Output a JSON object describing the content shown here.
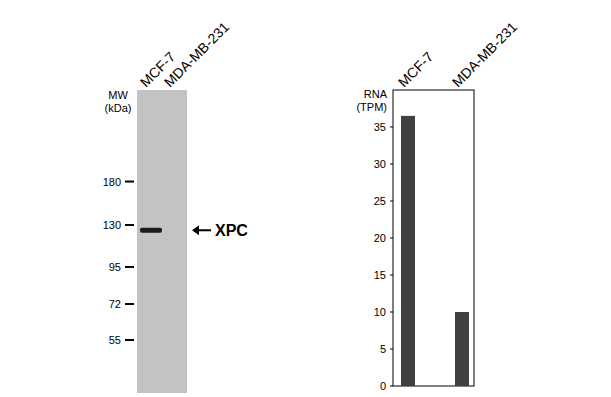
{
  "chart_data": [
    {
      "type": "western_blot",
      "ylabel": "MW\n(kDa)",
      "categories": [
        "MCF-7",
        "MDA-MB-231"
      ],
      "values": [
        125,
        null
      ],
      "color": "#1a1a1a",
      "log": "y",
      "ylim": [
        37,
        357
      ],
      "yticks": [
        180,
        130,
        95,
        72,
        55
      ],
      "annotation": "XPC"
    },
    {
      "type": "bar",
      "ylabel": "RNA\n(TPM)",
      "categories": [
        "MCF-7",
        "MDA-MB-231"
      ],
      "values": [
        36.5,
        10
      ],
      "color": "#404040",
      "ylim": [
        0,
        40
      ],
      "yticks": [
        0,
        5,
        10,
        15,
        20,
        25,
        30,
        35
      ]
    }
  ]
}
